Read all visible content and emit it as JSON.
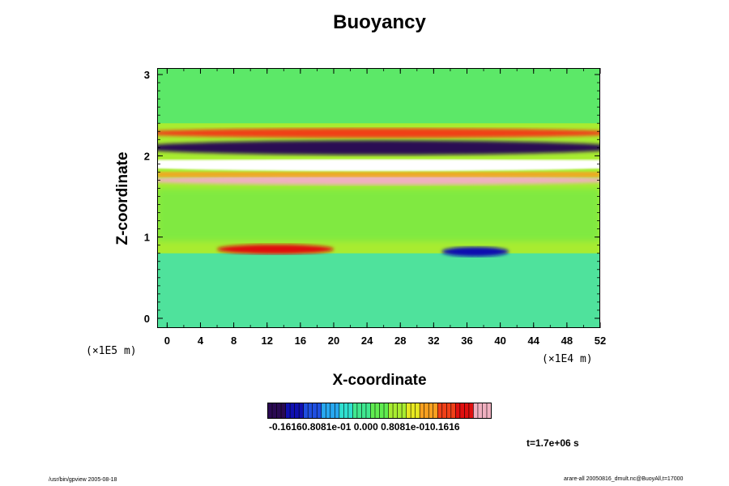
{
  "chart_data": {
    "type": "heatmap",
    "title": "Buoyancy",
    "xlabel": "X-coordinate",
    "ylabel": "Z-coordinate",
    "x_scale_label": "(×1E4 m)",
    "y_scale_label": "(×1E5 m)",
    "xlim": [
      -1.2,
      52
    ],
    "ylim": [
      -0.12,
      3.08
    ],
    "x_ticks": [
      0,
      4,
      8,
      12,
      16,
      20,
      24,
      28,
      32,
      36,
      40,
      44,
      48,
      52
    ],
    "y_ticks": [
      0,
      1,
      2,
      3
    ],
    "x_tick_labels": [
      "0",
      "4",
      "8",
      "12",
      "16",
      "20",
      "24",
      "28",
      "32",
      "36",
      "40",
      "44",
      "48",
      "52"
    ],
    "y_tick_labels": [
      "0",
      "1",
      "2",
      "3"
    ],
    "colorbar": {
      "range": [
        -0.2,
        0.2
      ],
      "tick_labels": "-0.16160.8081e-01 0.000 0.8081e-010.1616",
      "colors": [
        "#2a0a52",
        "#1010b0",
        "#1f4fe0",
        "#28a8f0",
        "#30e0d0",
        "#40e890",
        "#60ec50",
        "#a8ec30",
        "#e8e820",
        "#f8a020",
        "#f04018",
        "#e01010",
        "#f0b0c0"
      ]
    },
    "time_label": "t=1.7e+06 s",
    "background_value": 0.04,
    "bands": [
      {
        "z": 0.85,
        "value": 0.14,
        "x_range": [
          6,
          20
        ]
      },
      {
        "z": 0.82,
        "value": -0.14,
        "x_range": [
          33,
          41
        ]
      },
      {
        "z": 1.7,
        "value": 0.17,
        "x_range": [
          0,
          52
        ]
      },
      {
        "z": 1.88,
        "value": 0.5,
        "x_range": [
          0,
          52
        ]
      },
      {
        "z": 2.1,
        "value": -0.2,
        "x_range": [
          0,
          52
        ]
      },
      {
        "z": 2.28,
        "value": 0.12,
        "x_range": [
          0,
          52
        ]
      }
    ]
  },
  "footer": {
    "left": "/usr/bin/gpview 2005-08-18",
    "right": "arare-all 20050816_dmult.nc@BuoyAll,t=17000"
  }
}
